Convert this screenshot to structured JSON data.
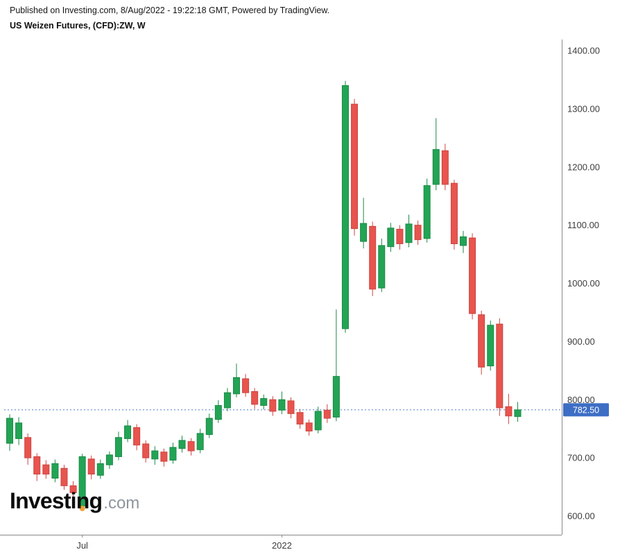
{
  "header": {
    "published": "Published on Investing.com, 8/Aug/2022 - 19:22:18 GMT, Powered by TradingView.",
    "instrument": "US Weizen Futures, (CFD):ZW, W"
  },
  "watermark": {
    "brand": "Investing",
    "suffix": ".com"
  },
  "chart_data": {
    "type": "candlestick",
    "title": "US Weizen Futures, (CFD):ZW, W",
    "timeframe": "W",
    "y_axis": {
      "min": 600,
      "max": 1400,
      "tick_interval": 100,
      "ticks": [
        1400,
        1300,
        1200,
        1100,
        1000,
        900,
        800,
        700,
        600
      ]
    },
    "x_axis": {
      "ticks": [
        {
          "label": "Jul",
          "index": 8
        },
        {
          "label": "2022",
          "index": 30
        }
      ]
    },
    "last_price": 782.5,
    "last_price_label": "782.50",
    "marker": {
      "index": 8,
      "price": 613,
      "color": "#f0a43a"
    },
    "colors": {
      "up": "#23a455",
      "up_border": "#1a8a44",
      "down": "#e8544e",
      "down_border": "#cc4540",
      "price_line_dotted": "#4a7cc9",
      "price_badge": "#3d6ec5",
      "axis_line": "#888888",
      "axis_text": "#3c3c3c"
    },
    "candles": [
      [
        725,
        775,
        712,
        768
      ],
      [
        733,
        770,
        722,
        760
      ],
      [
        735,
        742,
        688,
        700
      ],
      [
        702,
        708,
        660,
        672
      ],
      [
        688,
        696,
        664,
        672
      ],
      [
        665,
        697,
        658,
        690
      ],
      [
        682,
        688,
        645,
        652
      ],
      [
        652,
        660,
        632,
        640
      ],
      [
        617,
        707,
        610,
        702
      ],
      [
        698,
        704,
        663,
        672
      ],
      [
        670,
        697,
        664,
        690
      ],
      [
        688,
        711,
        681,
        705
      ],
      [
        702,
        745,
        696,
        735
      ],
      [
        733,
        765,
        727,
        755
      ],
      [
        752,
        758,
        713,
        722
      ],
      [
        724,
        730,
        692,
        700
      ],
      [
        698,
        720,
        688,
        712
      ],
      [
        710,
        716,
        685,
        694
      ],
      [
        696,
        726,
        690,
        718
      ],
      [
        716,
        738,
        709,
        730
      ],
      [
        728,
        734,
        704,
        712
      ],
      [
        714,
        750,
        708,
        742
      ],
      [
        740,
        776,
        734,
        768
      ],
      [
        766,
        799,
        760,
        790
      ],
      [
        786,
        820,
        780,
        812
      ],
      [
        810,
        862,
        804,
        838
      ],
      [
        836,
        844,
        805,
        812
      ],
      [
        814,
        820,
        784,
        792
      ],
      [
        790,
        809,
        783,
        802
      ],
      [
        800,
        806,
        772,
        780
      ],
      [
        782,
        814,
        775,
        800
      ],
      [
        798,
        804,
        768,
        776
      ],
      [
        778,
        784,
        750,
        758
      ],
      [
        760,
        766,
        738,
        746
      ],
      [
        748,
        788,
        742,
        780
      ],
      [
        782,
        792,
        760,
        768
      ],
      [
        770,
        955,
        763,
        840
      ],
      [
        922,
        1348,
        915,
        1340
      ],
      [
        1308,
        1317,
        1082,
        1094
      ],
      [
        1072,
        1147,
        1060,
        1103
      ],
      [
        1098,
        1106,
        978,
        990
      ],
      [
        992,
        1077,
        985,
        1065
      ],
      [
        1063,
        1104,
        1054,
        1095
      ],
      [
        1093,
        1100,
        1058,
        1068
      ],
      [
        1070,
        1118,
        1062,
        1102
      ],
      [
        1100,
        1108,
        1066,
        1075
      ],
      [
        1077,
        1180,
        1070,
        1168
      ],
      [
        1170,
        1284,
        1160,
        1230
      ],
      [
        1228,
        1240,
        1160,
        1170
      ],
      [
        1172,
        1178,
        1058,
        1068
      ],
      [
        1065,
        1090,
        1052,
        1080
      ],
      [
        1078,
        1086,
        938,
        948
      ],
      [
        946,
        953,
        843,
        856
      ],
      [
        858,
        936,
        850,
        928
      ],
      [
        930,
        940,
        772,
        786
      ],
      [
        788,
        810,
        758,
        772
      ],
      [
        771,
        796,
        762,
        782.5
      ]
    ]
  }
}
